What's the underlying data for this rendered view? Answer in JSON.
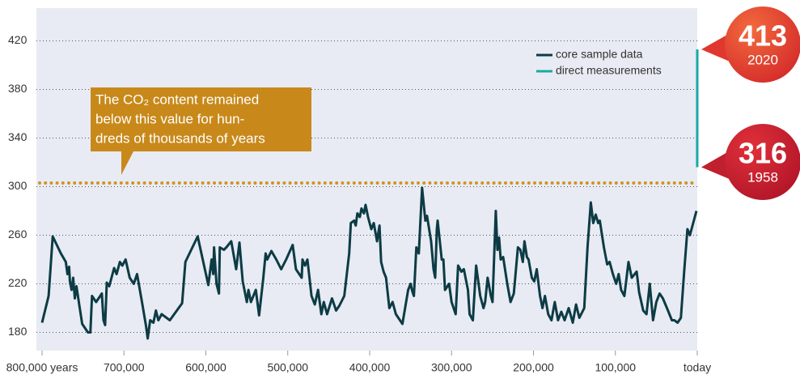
{
  "chart_data": {
    "type": "line",
    "xlim": [
      800000,
      0
    ],
    "ylim": [
      165,
      447
    ],
    "xticks": [
      {
        "value": 800000,
        "label": "800,000 years"
      },
      {
        "value": 700000,
        "label": "700,000"
      },
      {
        "value": 600000,
        "label": "600,000"
      },
      {
        "value": 500000,
        "label": "500,000"
      },
      {
        "value": 400000,
        "label": "400,000"
      },
      {
        "value": 300000,
        "label": "300,000"
      },
      {
        "value": 200000,
        "label": "200,000"
      },
      {
        "value": 100000,
        "label": "100,000"
      },
      {
        "value": 0,
        "label": "today"
      }
    ],
    "yticks": [
      180,
      220,
      260,
      300,
      340,
      380,
      420
    ],
    "grid": true,
    "legend": "top-right",
    "threshold": {
      "value": 303,
      "color": "#d4921c"
    },
    "annotation": {
      "lines": [
        "The CO₂ content remained",
        "below this value for hun-",
        "dreds of thousands of years"
      ],
      "color": "#c8891a"
    },
    "series": [
      {
        "name": "core sample data",
        "color": "#0d3b45",
        "x": [
          800000,
          792000,
          787000,
          777000,
          771000,
          769000,
          767000,
          766000,
          764000,
          762000,
          760000,
          758000,
          754000,
          751000,
          744000,
          741000,
          739000,
          734000,
          727000,
          725000,
          723000,
          721000,
          718000,
          712000,
          709000,
          705000,
          702000,
          698000,
          693000,
          688000,
          684000,
          678000,
          673000,
          671000,
          668000,
          664000,
          661000,
          658000,
          654000,
          644000,
          629000,
          625000,
          610000,
          597000,
          593000,
          591000,
          590000,
          587000,
          584000,
          583000,
          578000,
          575000,
          569000,
          563000,
          559000,
          555000,
          550000,
          548000,
          545000,
          539000,
          535000,
          530000,
          527000,
          525000,
          520000,
          514000,
          508000,
          502000,
          494000,
          490000,
          483000,
          482000,
          479000,
          476000,
          471000,
          467000,
          463000,
          459000,
          456000,
          452000,
          446000,
          441000,
          437000,
          431000,
          425000,
          423000,
          419000,
          417000,
          415000,
          412000,
          410000,
          407000,
          405000,
          402000,
          398000,
          395000,
          391000,
          388000,
          386000,
          383000,
          380000,
          376000,
          372000,
          368000,
          360000,
          353000,
          350000,
          348000,
          346000,
          343000,
          340000,
          336000,
          332000,
          330000,
          325000,
          322000,
          320000,
          318000,
          317000,
          312000,
          310000,
          308000,
          303000,
          300000,
          295000,
          292000,
          288000,
          285000,
          280000,
          278000,
          274000,
          270000,
          265000,
          261000,
          259000,
          256000,
          252000,
          250000,
          246000,
          244000,
          242000,
          240000,
          237000,
          232000,
          228000,
          224000,
          219000,
          216000,
          213000,
          211000,
          208000,
          206000,
          202000,
          199000,
          196000,
          192000,
          189000,
          186000,
          182000,
          178000,
          174000,
          170000,
          166000,
          162000,
          157000,
          152000,
          148000,
          144000,
          138000,
          134000,
          130000,
          127000,
          124000,
          121000,
          119000,
          114000,
          110000,
          107000,
          103000,
          99000,
          96000,
          93000,
          89000,
          84000,
          80000,
          74000,
          71000,
          66000,
          62000,
          58000,
          56000,
          54000,
          50000,
          46000,
          42000,
          37000,
          31000,
          28000,
          24000,
          20000,
          16000,
          12000,
          9000,
          5000,
          1000
        ],
        "values": [
          188,
          210,
          259,
          245,
          238,
          228,
          234,
          222,
          215,
          225,
          208,
          218,
          200,
          187,
          180,
          180,
          210,
          205,
          212,
          190,
          186,
          221,
          218,
          233,
          228,
          238,
          235,
          240,
          225,
          220,
          228,
          205,
          185,
          175,
          190,
          188,
          198,
          190,
          195,
          190,
          204,
          238,
          259,
          219,
          240,
          228,
          250,
          220,
          212,
          250,
          248,
          250,
          255,
          232,
          254,
          222,
          205,
          215,
          205,
          215,
          194,
          224,
          245,
          240,
          247,
          240,
          232,
          240,
          252,
          232,
          225,
          240,
          235,
          240,
          210,
          203,
          215,
          195,
          205,
          195,
          208,
          198,
          202,
          210,
          245,
          270,
          272,
          268,
          278,
          275,
          282,
          278,
          285,
          275,
          265,
          270,
          255,
          268,
          238,
          230,
          225,
          200,
          205,
          195,
          187,
          215,
          220,
          214,
          210,
          250,
          245,
          299,
          272,
          276,
          255,
          232,
          225,
          265,
          272,
          240,
          240,
          215,
          220,
          205,
          195,
          235,
          230,
          232,
          215,
          195,
          190,
          235,
          210,
          200,
          205,
          225,
          210,
          205,
          280,
          248,
          258,
          240,
          242,
          220,
          205,
          212,
          250,
          248,
          238,
          255,
          242,
          240,
          225,
          222,
          232,
          210,
          200,
          210,
          195,
          190,
          205,
          190,
          197,
          190,
          200,
          188,
          203,
          192,
          200,
          250,
          287,
          270,
          277,
          270,
          272,
          250,
          236,
          238,
          228,
          220,
          228,
          215,
          210,
          238,
          225,
          230,
          213,
          198,
          195,
          220,
          205,
          190,
          205,
          212,
          208,
          200,
          190,
          190,
          188,
          192,
          230,
          265,
          260,
          270,
          280
        ]
      },
      {
        "name": "direct measurements",
        "color": "#1aa9a9",
        "x": [
          62,
          0
        ],
        "values": [
          316,
          413
        ],
        "point_labels": [
          "1958",
          "2020"
        ]
      }
    ]
  }
}
